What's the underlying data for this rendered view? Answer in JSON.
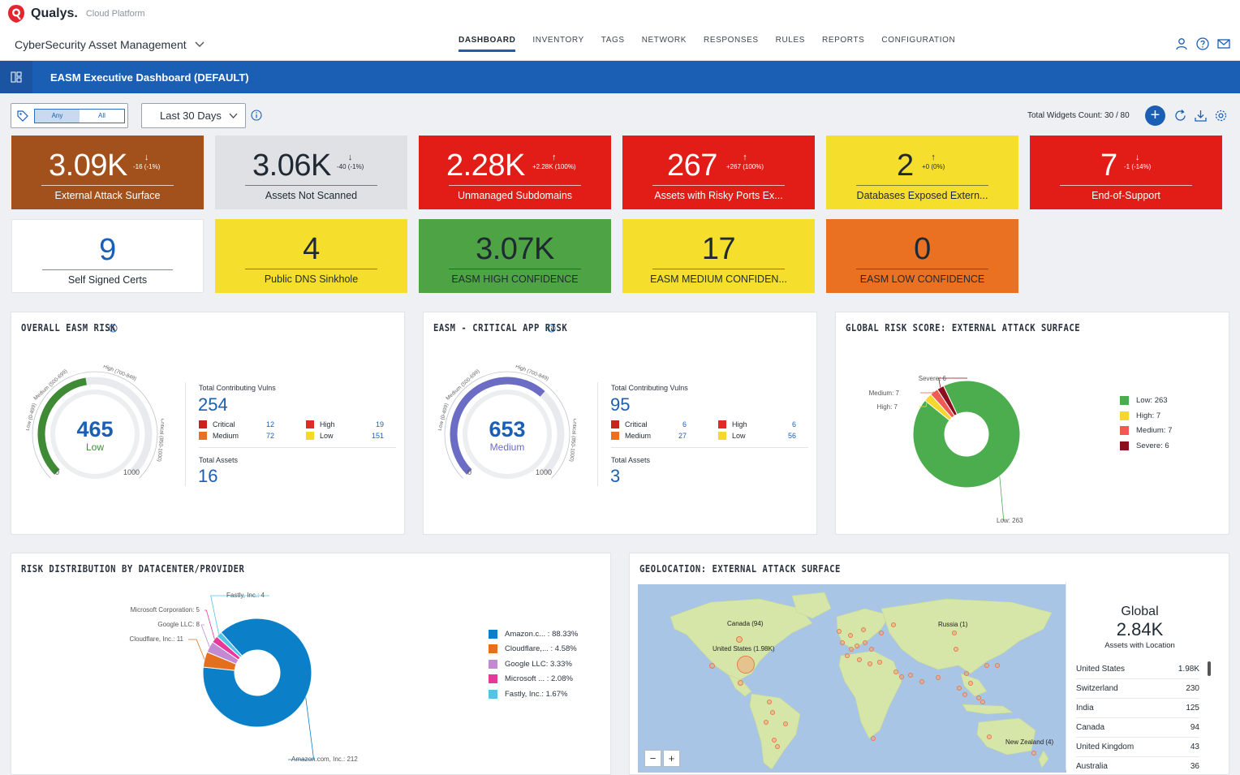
{
  "header": {
    "logo_name": "Qualys.",
    "logo_sub": "Cloud Platform",
    "app_title": "CyberSecurity Asset Management",
    "nav": [
      "DASHBOARD",
      "INVENTORY",
      "TAGS",
      "NETWORK",
      "RESPONSES",
      "RULES",
      "REPORTS",
      "CONFIGURATION"
    ],
    "active_nav": "DASHBOARD",
    "icons": [
      "user-icon",
      "help-icon",
      "mail-icon"
    ]
  },
  "dashbar": {
    "title": "EASM Executive Dashboard (DEFAULT)"
  },
  "filters": {
    "tag_any": "Any",
    "tag_all": "All",
    "date_range": "Last 30 Days",
    "widgets_count": "Total Widgets Count: 30 / 80"
  },
  "tiles": [
    {
      "value": "3.09K",
      "arrow": "↓",
      "change": "-16 (-1%)",
      "label": "External Attack Surface",
      "bg": "#a3511c",
      "fg": "#ffffff"
    },
    {
      "value": "3.06K",
      "arrow": "↓",
      "change": "-40 (-1%)",
      "label": "Assets Not Scanned",
      "bg": "#dfe1e4",
      "fg": "#1f2933"
    },
    {
      "value": "2.28K",
      "arrow": "↑",
      "change": "+2.28K (100%)",
      "label": "Unmanaged Subdomains",
      "bg": "#e21c17",
      "fg": "#ffffff"
    },
    {
      "value": "267",
      "arrow": "↑",
      "change": "+267 (100%)",
      "label": "Assets with Risky Ports Ex...",
      "bg": "#e21c17",
      "fg": "#ffffff"
    },
    {
      "value": "2",
      "arrow": "↑",
      "change": "+0 (0%)",
      "label": "Databases Exposed Extern...",
      "bg": "#f6de2c",
      "fg": "#1f2933"
    },
    {
      "value": "7",
      "arrow": "↓",
      "change": "-1 (-14%)",
      "label": "End-of-Support",
      "bg": "#e21c17",
      "fg": "#ffffff"
    },
    {
      "value": "9",
      "label": "Self Signed Certs",
      "bg": "#ffffff",
      "fg": "#1a5fb4"
    },
    {
      "value": "4",
      "label": "Public DNS Sinkhole",
      "bg": "#f6de2c",
      "fg": "#1f2933"
    },
    {
      "value": "3.07K",
      "label": "EASM HIGH CONFIDENCE",
      "bg": "#4ea345",
      "fg": "#1f2933"
    },
    {
      "value": "17",
      "label": "EASM MEDIUM CONFIDEN...",
      "bg": "#f6de2c",
      "fg": "#1f2933"
    },
    {
      "value": "0",
      "label": "EASM LOW CONFIDENCE",
      "bg": "#ea7122",
      "fg": "#1f2933"
    }
  ],
  "risk_panels": [
    {
      "title": "OVERALL EASM RISK",
      "score": "465",
      "level": "Low",
      "score_value": 465,
      "score_max": 1000,
      "gauge_color": "#3e8a35",
      "score_color": "#1a5fb4",
      "level_color": "#3e8a35",
      "scale_low": "Low (0-499)",
      "scale_medium": "Medium (500-699)",
      "scale_high": "High (700-849)",
      "scale_critical": "Critical (850-1000)",
      "scale_min": "0",
      "scale_max": "1000",
      "vulns_label": "Total Contributing Vulns",
      "vulns_total": "254",
      "critical": "12",
      "high": "19",
      "medium": "72",
      "low": "151",
      "assets_label": "Total Assets",
      "assets_total": "16"
    },
    {
      "title": "EASM - CRITICAL APP RISK",
      "score": "653",
      "level": "Medium",
      "score_value": 653,
      "score_max": 1000,
      "gauge_color": "#6b6cc4",
      "score_color": "#1a5fb4",
      "level_color": "#6b6cc4",
      "scale_low": "Low (0-499)",
      "scale_medium": "Medium (500-699)",
      "scale_high": "High (700-849)",
      "scale_critical": "Critical (850-1000)",
      "scale_min": "0",
      "scale_max": "1000",
      "vulns_label": "Total Contributing Vulns",
      "vulns_total": "95",
      "critical": "6",
      "high": "6",
      "medium": "27",
      "low": "56",
      "assets_label": "Total Assets",
      "assets_total": "3"
    }
  ],
  "severity_labels": {
    "critical": "Critical",
    "high": "High",
    "medium": "Medium",
    "low": "Low"
  },
  "severity_colors": {
    "critical": "#c8241c",
    "high": "#e02a25",
    "medium": "#ea7122",
    "low": "#f6d72b"
  },
  "global_risk": {
    "title": "GLOBAL RISK SCORE: EXTERNAL ATTACK SURFACE",
    "chart_data": {
      "type": "pie",
      "slices": [
        {
          "label": "Low",
          "value": 263,
          "color": "#4cad4f",
          "legend": "Low: 263",
          "callout": "Low: 263"
        },
        {
          "label": "High",
          "value": 7,
          "color": "#f6d72b",
          "legend": "High: 7",
          "callout": "High: 7"
        },
        {
          "label": "Medium",
          "value": 7,
          "color": "#f05a54",
          "legend": "Medium: 7",
          "callout": "Medium: 7"
        },
        {
          "label": "Severe",
          "value": 6,
          "color": "#8c0e1f",
          "legend": "Severe: 6",
          "callout": "Severe: 6"
        }
      ]
    }
  },
  "provider_risk": {
    "title": "RISK DISTRIBUTION BY DATACENTER/PROVIDER",
    "chart_data": {
      "type": "pie",
      "slices": [
        {
          "label": "Amazon.com, Inc.",
          "value": 212,
          "color": "#0b80c9",
          "legend": "Amazon.c... : 88.33%",
          "callout": "Amazon.com, Inc.: 212"
        },
        {
          "label": "Cloudflare, Inc.",
          "value": 11,
          "color": "#e36f1f",
          "legend": "Cloudflare,... : 4.58%",
          "callout": "Cloudflare, Inc.: 11"
        },
        {
          "label": "Google LLC",
          "value": 8,
          "color": "#c38ad3",
          "legend": "Google LLC: 3.33%",
          "callout": "Google LLC: 8"
        },
        {
          "label": "Microsoft Corporation",
          "value": 5,
          "color": "#e8399a",
          "legend": "Microsoft ... : 2.08%",
          "callout": "Microsoft Corporation: 5"
        },
        {
          "label": "Fastly, Inc.",
          "value": 4,
          "color": "#55c3e8",
          "legend": "Fastly, Inc.: 1.67%",
          "callout": "Fastly, Inc.: 4"
        }
      ]
    }
  },
  "geolocation": {
    "title": "GEOLOCATION: EXTERNAL ATTACK SURFACE",
    "global_label": "Global",
    "global_value": "2.84K",
    "global_sub": "Assets with Location",
    "map_labels": [
      "Canada (94)",
      "United States (1.98K)",
      "Russia (1)",
      "New Zealand (4)"
    ],
    "countries": [
      {
        "name": "United States",
        "count": "1.98K"
      },
      {
        "name": "Switzerland",
        "count": "230"
      },
      {
        "name": "India",
        "count": "125"
      },
      {
        "name": "Canada",
        "count": "94"
      },
      {
        "name": "United Kingdom",
        "count": "43"
      },
      {
        "name": "Australia",
        "count": "36"
      }
    ],
    "zoom_out": "−",
    "zoom_in": "+"
  }
}
